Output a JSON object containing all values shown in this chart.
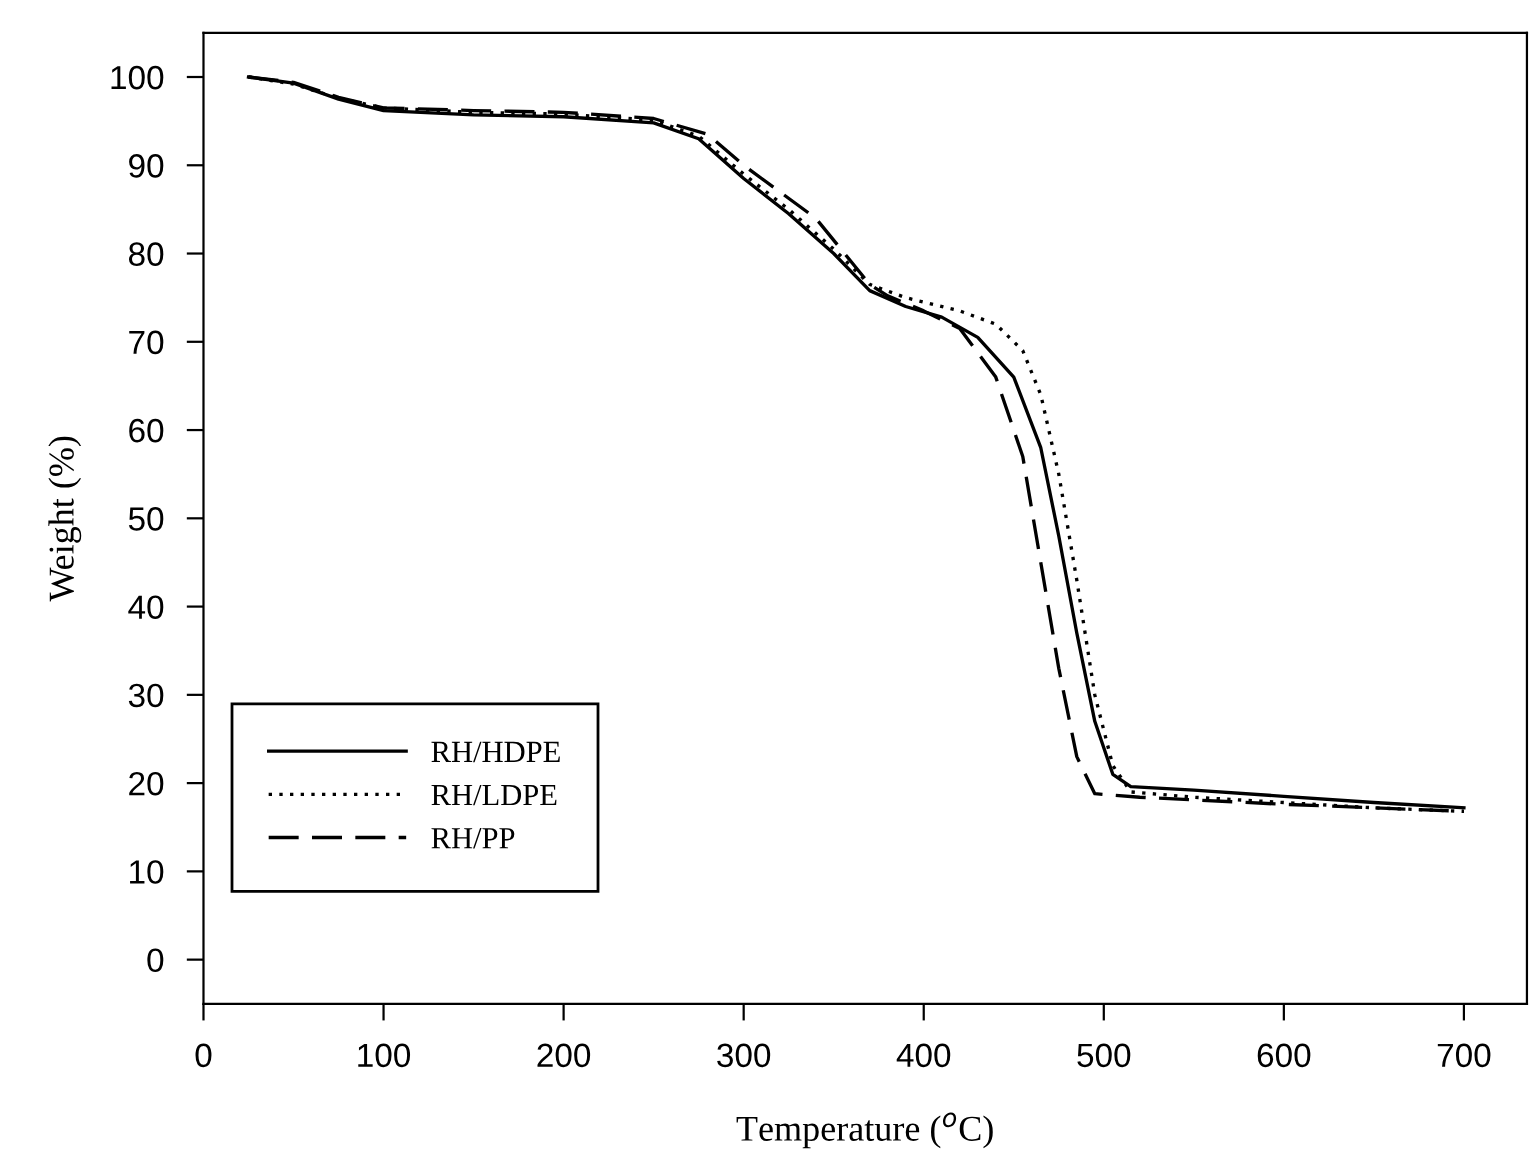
{
  "chart_data": {
    "type": "line",
    "xlabel": "Temperature ($^{o}$C)",
    "ylabel": "Weight (%)",
    "xlim": [
      0,
      735
    ],
    "ylim": [
      -5,
      105
    ],
    "xticks": [
      0,
      100,
      200,
      300,
      400,
      500,
      600,
      700
    ],
    "yticks": [
      0,
      10,
      20,
      30,
      40,
      50,
      60,
      70,
      80,
      90,
      100
    ],
    "grid": false,
    "legend": "bottom left",
    "marker": "none",
    "series": [
      {
        "name": "RH/HDPE",
        "color": "#000000",
        "line_style": "solid",
        "x": [
          25,
          50,
          75,
          100,
          150,
          200,
          250,
          275,
          300,
          325,
          350,
          370,
          390,
          410,
          430,
          450,
          465,
          475,
          485,
          495,
          505,
          515,
          550,
          600,
          650,
          700
        ],
        "values": [
          100,
          99.3,
          97.5,
          96.2,
          95.7,
          95.5,
          94.8,
          93,
          88.5,
          84.5,
          80,
          75.8,
          74,
          72.8,
          70.5,
          66,
          58,
          48,
          37,
          27,
          21,
          19.6,
          19.2,
          18.5,
          17.8,
          17.2
        ]
      },
      {
        "name": "RH/LDPE",
        "color": "#000000",
        "line_style": "dotted",
        "x": [
          25,
          50,
          75,
          100,
          150,
          200,
          250,
          275,
          300,
          325,
          350,
          370,
          390,
          420,
          440,
          455,
          465,
          475,
          485,
          495,
          505,
          515,
          550,
          600,
          650,
          700
        ],
        "values": [
          100,
          99.2,
          97.6,
          96.5,
          96,
          95.8,
          95.1,
          93.3,
          89,
          85,
          80.5,
          76.5,
          75,
          73.5,
          72,
          69,
          64,
          55,
          43,
          30,
          22,
          19,
          18.4,
          17.8,
          17.2,
          16.8
        ]
      },
      {
        "name": "RH/PP",
        "color": "#000000",
        "line_style": "dashed",
        "x": [
          25,
          50,
          75,
          100,
          150,
          200,
          250,
          280,
          300,
          340,
          370,
          380,
          400,
          420,
          440,
          455,
          465,
          475,
          485,
          495,
          520,
          600,
          700
        ],
        "values": [
          100,
          99.4,
          97.7,
          96.5,
          96.2,
          96,
          95.3,
          93.5,
          90,
          84,
          76.5,
          75.2,
          73.5,
          71.5,
          66,
          57,
          45,
          33,
          23,
          18.8,
          18.4,
          17.6,
          16.8
        ]
      }
    ]
  }
}
